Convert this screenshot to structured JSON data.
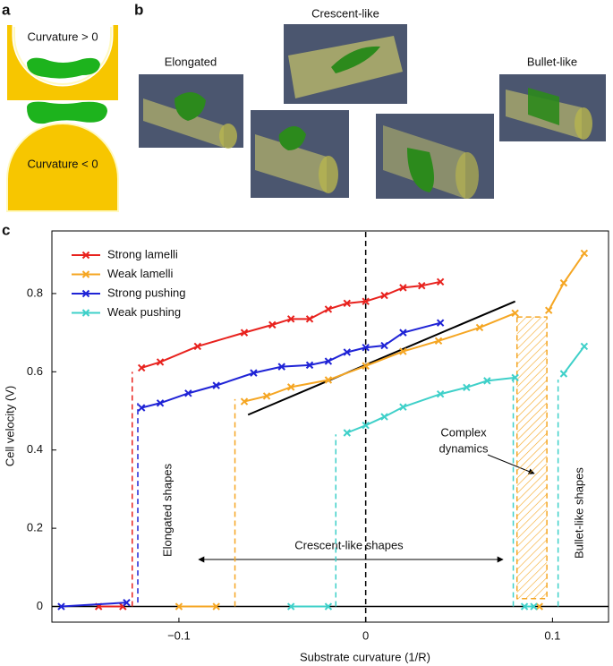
{
  "panel_labels": [
    "a",
    "b",
    "c"
  ],
  "panel_a": {
    "top": "Curvature > 0",
    "bottom": "Curvature < 0"
  },
  "panel_b": {
    "left": "Elongated",
    "middle": "Crescent-like",
    "right": "Bullet-like"
  },
  "chart_data": {
    "type": "line",
    "x_label": "Substrate curvature (1/R)",
    "y_label": "Cell velocity (V)",
    "xlim": [
      -0.168,
      0.13
    ],
    "ylim": [
      -0.04,
      0.96
    ],
    "xticks": [
      {
        "value": -0.1,
        "label": "−0.1"
      },
      0,
      0.1
    ],
    "yticks": [
      0,
      0.2,
      0.4,
      0.6,
      0.8
    ],
    "legend": "upper left",
    "series": [
      {
        "name": "Strong lamelli",
        "color": "#e8221e",
        "x": [
          -0.143,
          -0.13,
          null,
          -0.12,
          -0.11,
          -0.09,
          -0.065,
          -0.05,
          -0.04,
          -0.03,
          -0.02,
          -0.01,
          0,
          0.01,
          0.02,
          0.03,
          0.04
        ],
        "values": [
          0,
          0,
          null,
          0.61,
          0.625,
          0.665,
          0.7,
          0.72,
          0.735,
          0.735,
          0.76,
          0.775,
          0.78,
          0.795,
          0.815,
          0.82,
          0.83
        ]
      },
      {
        "name": "Weak lamelli",
        "color": "#f5a623",
        "x": [
          -0.1,
          -0.08,
          null,
          -0.065,
          -0.053,
          -0.04,
          -0.02,
          0,
          0.02,
          0.039,
          0.061,
          0.08,
          null,
          0.093,
          null,
          0.098,
          0.106,
          0.117
        ],
        "values": [
          0,
          0,
          null,
          0.524,
          0.538,
          0.561,
          0.579,
          0.615,
          0.652,
          0.679,
          0.713,
          0.75,
          null,
          0,
          null,
          0.757,
          0.827,
          0.903
        ]
      },
      {
        "name": "Strong pushing",
        "color": "#1f23d6",
        "x": [
          -0.163,
          -0.128,
          null,
          -0.12,
          -0.11,
          -0.095,
          -0.08,
          -0.06,
          -0.045,
          -0.03,
          -0.02,
          -0.01,
          0,
          0.01,
          0.02,
          0.04
        ],
        "values": [
          0,
          0.01,
          null,
          0.508,
          0.52,
          0.545,
          0.565,
          0.597,
          0.613,
          0.617,
          0.627,
          0.65,
          0.662,
          0.667,
          0.7,
          0.725
        ]
      },
      {
        "name": "Weak pushing",
        "color": "#3fd0c9",
        "x": [
          -0.04,
          -0.02,
          null,
          -0.01,
          0,
          0.01,
          0.02,
          0.04,
          0.054,
          0.065,
          0.08,
          null,
          0.085,
          0.09,
          null,
          0.106,
          0.117
        ],
        "values": [
          0,
          0,
          null,
          0.444,
          0.463,
          0.485,
          0.51,
          0.543,
          0.56,
          0.577,
          0.585,
          null,
          0,
          0,
          null,
          0.595,
          0.665
        ]
      }
    ],
    "fit_line": {
      "color": "#000000",
      "x": [
        -0.063,
        0.08
      ],
      "values": [
        0.49,
        0.78
      ]
    },
    "dashed_lines": [
      {
        "color": "#e8221e",
        "x": [
          -0.125,
          -0.125
        ],
        "values": [
          0,
          0.6
        ]
      },
      {
        "color": "#1f23d6",
        "x": [
          -0.122,
          -0.122
        ],
        "values": [
          0.01,
          0.52
        ]
      },
      {
        "color": "#f5a623",
        "x": [
          -0.07,
          -0.07
        ],
        "values": [
          0,
          0.53
        ]
      },
      {
        "color": "#3fd0c9",
        "x": [
          -0.016,
          -0.016
        ],
        "values": [
          0,
          0.44
        ]
      },
      {
        "color": "#000000",
        "x": [
          0,
          0
        ],
        "values": [
          -0.04,
          0.96
        ]
      },
      {
        "color": "#3fd0c9",
        "x": [
          0.079,
          0.079
        ],
        "values": [
          0,
          0.585
        ]
      },
      {
        "color": "#3fd0c9",
        "x": [
          0.103,
          0.103
        ],
        "values": [
          0,
          0.58
        ]
      }
    ],
    "complex_region": {
      "color": "#f5a623",
      "x": [
        0.081,
        0.097
      ],
      "values": [
        0.02,
        0.74
      ]
    },
    "annotations": {
      "elongated": "Elongated shapes",
      "crescent": "Crescent-like shapes",
      "complex": [
        "Complex",
        "dynamics"
      ],
      "bullet": "Bullet-like shapes"
    }
  }
}
